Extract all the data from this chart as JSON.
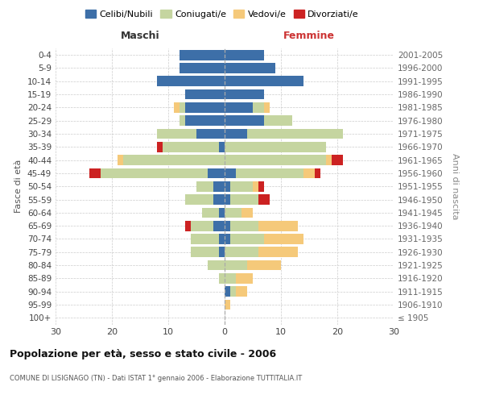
{
  "age_groups": [
    "100+",
    "95-99",
    "90-94",
    "85-89",
    "80-84",
    "75-79",
    "70-74",
    "65-69",
    "60-64",
    "55-59",
    "50-54",
    "45-49",
    "40-44",
    "35-39",
    "30-34",
    "25-29",
    "20-24",
    "15-19",
    "10-14",
    "5-9",
    "0-4"
  ],
  "birth_years": [
    "≤ 1905",
    "1906-1910",
    "1911-1915",
    "1916-1920",
    "1921-1925",
    "1926-1930",
    "1931-1935",
    "1936-1940",
    "1941-1945",
    "1946-1950",
    "1951-1955",
    "1956-1960",
    "1961-1965",
    "1966-1970",
    "1971-1975",
    "1976-1980",
    "1981-1985",
    "1986-1990",
    "1991-1995",
    "1996-2000",
    "2001-2005"
  ],
  "colors": {
    "celibi": "#3d6fa8",
    "coniugati": "#c5d5a0",
    "vedovi": "#f5c97a",
    "divorziati": "#cc2222"
  },
  "males": {
    "celibi": [
      0,
      0,
      0,
      0,
      0,
      1,
      1,
      2,
      1,
      2,
      2,
      3,
      0,
      1,
      5,
      7,
      7,
      7,
      12,
      8,
      8
    ],
    "coniugati": [
      0,
      0,
      0,
      1,
      3,
      5,
      5,
      4,
      3,
      5,
      3,
      19,
      18,
      10,
      7,
      1,
      1,
      0,
      0,
      0,
      0
    ],
    "vedovi": [
      0,
      0,
      0,
      0,
      0,
      0,
      0,
      0,
      0,
      0,
      0,
      0,
      1,
      0,
      0,
      0,
      1,
      0,
      0,
      0,
      0
    ],
    "divorziati": [
      0,
      0,
      0,
      0,
      0,
      0,
      0,
      1,
      0,
      0,
      0,
      2,
      0,
      1,
      0,
      0,
      0,
      0,
      0,
      0,
      0
    ]
  },
  "females": {
    "nubili": [
      0,
      0,
      1,
      0,
      0,
      0,
      1,
      1,
      0,
      1,
      1,
      2,
      0,
      0,
      4,
      7,
      5,
      7,
      14,
      9,
      7
    ],
    "coniugate": [
      0,
      0,
      1,
      2,
      4,
      6,
      6,
      5,
      3,
      5,
      4,
      12,
      18,
      18,
      17,
      5,
      2,
      0,
      0,
      0,
      0
    ],
    "vedove": [
      0,
      1,
      2,
      3,
      6,
      7,
      7,
      7,
      2,
      0,
      1,
      2,
      1,
      0,
      0,
      0,
      1,
      0,
      0,
      0,
      0
    ],
    "divorziate": [
      0,
      0,
      0,
      0,
      0,
      0,
      0,
      0,
      0,
      2,
      1,
      1,
      2,
      0,
      0,
      0,
      0,
      0,
      0,
      0,
      0
    ]
  },
  "xlim": 30,
  "title": "Popolazione per età, sesso e stato civile - 2006",
  "subtitle": "COMUNE DI LISIGNAGO (TN) - Dati ISTAT 1° gennaio 2006 - Elaborazione TUTTITALIA.IT",
  "ylabel_left": "Fasce di età",
  "ylabel_right": "Anni di nascita",
  "label_maschi": "Maschi",
  "label_femmine": "Femmine",
  "legend_labels": [
    "Celibi/Nubili",
    "Coniugati/e",
    "Vedovi/e",
    "Divorziati/e"
  ],
  "background_color": "#ffffff",
  "grid_color": "#cccccc"
}
